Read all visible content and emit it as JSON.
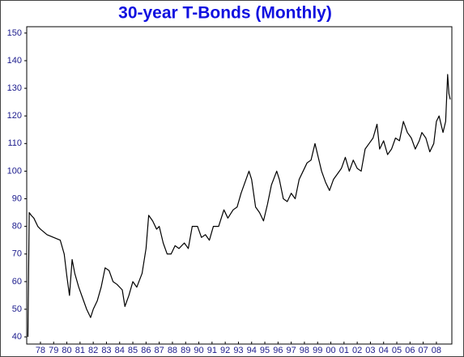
{
  "chart_data": {
    "type": "line",
    "title": "30-year T-Bonds (Monthly)",
    "x": [
      1977.05,
      1977.15,
      1977.3,
      1977.5,
      1977.8,
      1978.0,
      1978.5,
      1979.0,
      1979.5,
      1979.8,
      1980.0,
      1980.2,
      1980.4,
      1980.6,
      1980.9,
      1981.2,
      1981.5,
      1981.8,
      1982.0,
      1982.3,
      1982.6,
      1982.9,
      1983.2,
      1983.5,
      1983.8,
      1984.2,
      1984.4,
      1984.7,
      1985.0,
      1985.3,
      1985.7,
      1986.0,
      1986.2,
      1986.5,
      1986.8,
      1987.0,
      1987.3,
      1987.6,
      1987.9,
      1988.2,
      1988.5,
      1988.9,
      1989.2,
      1989.5,
      1989.9,
      1990.2,
      1990.5,
      1990.8,
      1991.1,
      1991.5,
      1991.9,
      1992.2,
      1992.6,
      1992.9,
      1993.2,
      1993.5,
      1993.8,
      1994.0,
      1994.3,
      1994.6,
      1994.9,
      1995.2,
      1995.5,
      1995.9,
      1996.1,
      1996.4,
      1996.7,
      1997.0,
      1997.3,
      1997.6,
      1997.9,
      1998.2,
      1998.5,
      1998.8,
      1999.0,
      1999.3,
      1999.6,
      1999.9,
      2000.2,
      2000.5,
      2000.8,
      2001.1,
      2001.4,
      2001.7,
      2002.0,
      2002.3,
      2002.6,
      2002.9,
      2003.2,
      2003.5,
      2003.7,
      2004.0,
      2004.3,
      2004.6,
      2004.9,
      2005.2,
      2005.5,
      2005.8,
      2006.1,
      2006.4,
      2006.7,
      2006.9,
      2007.2,
      2007.5,
      2007.8,
      2008.0,
      2008.2,
      2008.5,
      2008.7,
      2008.85,
      2008.95,
      2009.05
    ],
    "series": [
      {
        "color": "#000000",
        "values": [
          40,
          85,
          84,
          83,
          80,
          79,
          77,
          76,
          75,
          70,
          62,
          55,
          68,
          63,
          58,
          54,
          50,
          47,
          50,
          53,
          58,
          65,
          64,
          60,
          59,
          57,
          51,
          55,
          60,
          58,
          63,
          72,
          84,
          82,
          79,
          80,
          74,
          70,
          70,
          73,
          72,
          74,
          72,
          80,
          80,
          76,
          77,
          75,
          80,
          80,
          86,
          83,
          86,
          87,
          92,
          96,
          100,
          97,
          87,
          85,
          82,
          88,
          95,
          100,
          97,
          90,
          89,
          92,
          90,
          97,
          100,
          103,
          104,
          110,
          106,
          100,
          96,
          93,
          97,
          99,
          101,
          105,
          100,
          104,
          101,
          100,
          108,
          110,
          112,
          117,
          108,
          111,
          106,
          108,
          112,
          111,
          118,
          114,
          112,
          108,
          111,
          114,
          112,
          107,
          110,
          118,
          120,
          114,
          118,
          135,
          128,
          126
        ]
      }
    ],
    "xlim": [
      1976.96,
      2009.17
    ],
    "ylim": [
      37.4,
      152.3
    ],
    "yticks": [
      40,
      50,
      60,
      70,
      80,
      90,
      100,
      110,
      120,
      130,
      140,
      150
    ],
    "xticks": [
      {
        "value": 1978,
        "label": "78"
      },
      {
        "value": 1979,
        "label": "79"
      },
      {
        "value": 1980,
        "label": "80"
      },
      {
        "value": 1981,
        "label": "81"
      },
      {
        "value": 1982,
        "label": "82"
      },
      {
        "value": 1983,
        "label": "83"
      },
      {
        "value": 1984,
        "label": "84"
      },
      {
        "value": 1985,
        "label": "85"
      },
      {
        "value": 1986,
        "label": "86"
      },
      {
        "value": 1987,
        "label": "87"
      },
      {
        "value": 1988,
        "label": "88"
      },
      {
        "value": 1989,
        "label": "89"
      },
      {
        "value": 1990,
        "label": "90"
      },
      {
        "value": 1991,
        "label": "91"
      },
      {
        "value": 1992,
        "label": "92"
      },
      {
        "value": 1993,
        "label": "93"
      },
      {
        "value": 1994,
        "label": "94"
      },
      {
        "value": 1995,
        "label": "95"
      },
      {
        "value": 1996,
        "label": "96"
      },
      {
        "value": 1997,
        "label": "97"
      },
      {
        "value": 1998,
        "label": "98"
      },
      {
        "value": 1999,
        "label": "99"
      },
      {
        "value": 2000,
        "label": "00"
      },
      {
        "value": 2001,
        "label": "01"
      },
      {
        "value": 2002,
        "label": "02"
      },
      {
        "value": 2003,
        "label": "03"
      },
      {
        "value": 2004,
        "label": "04"
      },
      {
        "value": 2005,
        "label": "05"
      },
      {
        "value": 2006,
        "label": "06"
      },
      {
        "value": 2007,
        "label": "07"
      },
      {
        "value": 2008,
        "label": "08"
      }
    ]
  }
}
